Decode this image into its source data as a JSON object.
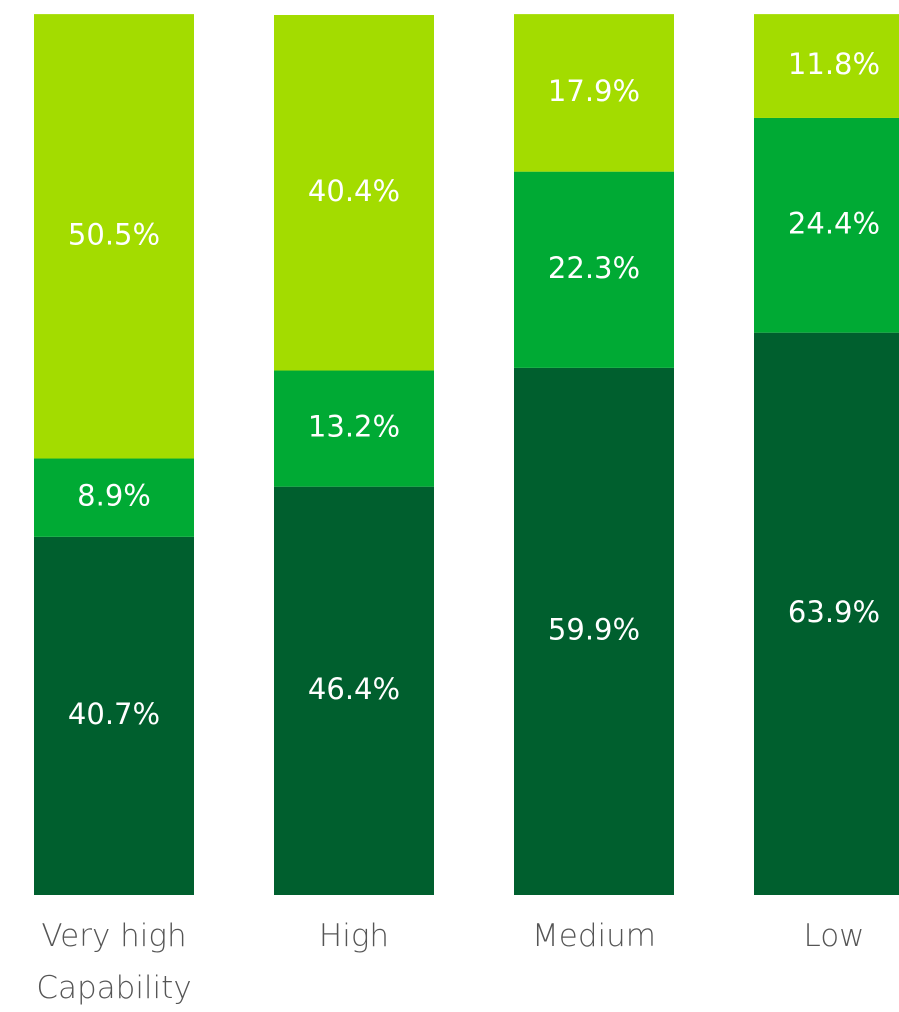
{
  "chart_data": {
    "type": "bar",
    "stacked": true,
    "categories": [
      "Very high Capability",
      "High",
      "Medium",
      "Low"
    ],
    "ylim": [
      0,
      100
    ],
    "series": [
      {
        "color": "#005f2e",
        "values": [
          40.7,
          46.4,
          59.9,
          63.9
        ],
        "value_labels": [
          "40.7%",
          "46.4%",
          "59.9%",
          "63.9%"
        ]
      },
      {
        "color": "#00aa34",
        "values": [
          8.9,
          13.2,
          22.3,
          24.4
        ],
        "value_labels": [
          "8.9%",
          "13.2%",
          "22.3%",
          "24.4%"
        ]
      },
      {
        "color": "#a3dc00",
        "values": [
          50.5,
          40.4,
          17.9,
          11.8
        ],
        "value_labels": [
          "50.5%",
          "40.4%",
          "17.9%",
          "11.8%"
        ]
      }
    ]
  }
}
